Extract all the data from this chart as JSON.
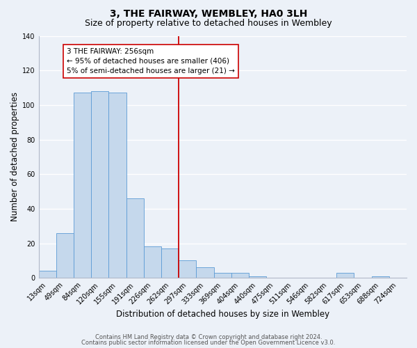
{
  "title": "3, THE FAIRWAY, WEMBLEY, HA0 3LH",
  "subtitle": "Size of property relative to detached houses in Wembley",
  "xlabel": "Distribution of detached houses by size in Wembley",
  "ylabel": "Number of detached properties",
  "bar_labels": [
    "13sqm",
    "49sqm",
    "84sqm",
    "120sqm",
    "155sqm",
    "191sqm",
    "226sqm",
    "262sqm",
    "297sqm",
    "333sqm",
    "369sqm",
    "404sqm",
    "440sqm",
    "475sqm",
    "511sqm",
    "546sqm",
    "582sqm",
    "617sqm",
    "653sqm",
    "688sqm",
    "724sqm"
  ],
  "bar_values": [
    4,
    26,
    107,
    108,
    107,
    46,
    18,
    17,
    10,
    6,
    3,
    3,
    1,
    0,
    0,
    0,
    0,
    3,
    0,
    1,
    0
  ],
  "bar_color": "#c5d8ec",
  "bar_edge_color": "#5b9bd5",
  "ylim": [
    0,
    140
  ],
  "yticks": [
    0,
    20,
    40,
    60,
    80,
    100,
    120,
    140
  ],
  "vline_x_index": 7,
  "vline_color": "#cc0000",
  "annotation_text": "3 THE FAIRWAY: 256sqm\n← 95% of detached houses are smaller (406)\n5% of semi-detached houses are larger (21) →",
  "footer_line1": "Contains HM Land Registry data © Crown copyright and database right 2024.",
  "footer_line2": "Contains public sector information licensed under the Open Government Licence v3.0.",
  "background_color": "#ecf1f8",
  "grid_color": "#ffffff",
  "title_fontsize": 10,
  "subtitle_fontsize": 9,
  "axis_label_fontsize": 8.5,
  "tick_fontsize": 7,
  "annotation_fontsize": 7.5,
  "footer_fontsize": 6
}
